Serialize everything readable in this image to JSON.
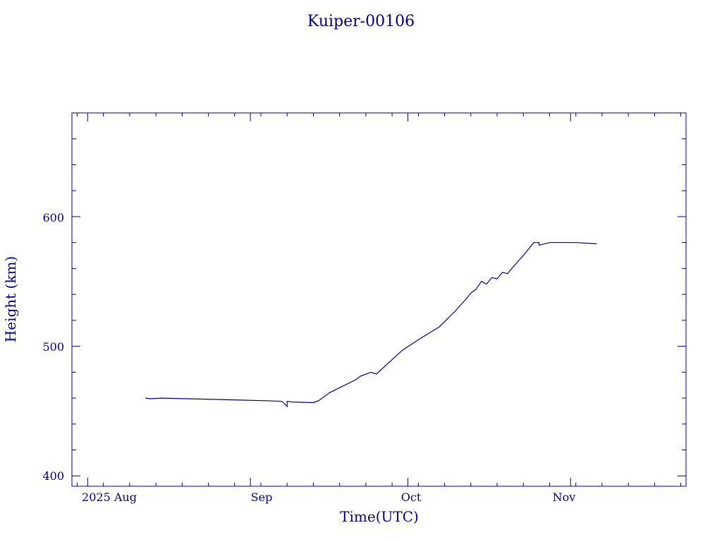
{
  "chart_data": {
    "type": "line",
    "title": "Kuiper-00106",
    "xlabel": "Time(UTC)",
    "ylabel": "Height (km)",
    "x_tick_labels": [
      "2025 Aug",
      "Sep",
      "Oct",
      "Nov"
    ],
    "y_tick_labels": [
      "400",
      "500",
      "600"
    ],
    "xlim": [
      "2025-07-29",
      "2025-11-23"
    ],
    "ylim": [
      392,
      680
    ],
    "grid": false,
    "color": "#00007f",
    "series": [
      {
        "x": [
          "2025-08-12",
          "2025-08-13",
          "2025-08-15",
          "2025-08-20",
          "2025-08-25",
          "2025-08-30",
          "2025-09-04",
          "2025-09-07",
          "2025-09-08",
          "2025-09-08",
          "2025-09-09",
          "2025-09-13",
          "2025-09-14",
          "2025-09-16",
          "2025-09-19",
          "2025-09-21",
          "2025-09-22",
          "2025-09-24",
          "2025-09-25",
          "2025-09-27",
          "2025-09-30",
          "2025-10-03",
          "2025-10-07",
          "2025-10-10",
          "2025-10-12",
          "2025-10-13",
          "2025-10-14",
          "2025-10-15",
          "2025-10-16",
          "2025-10-17",
          "2025-10-18",
          "2025-10-19",
          "2025-10-20",
          "2025-10-21",
          "2025-10-23",
          "2025-10-25",
          "2025-10-26",
          "2025-10-26",
          "2025-10-28",
          "2025-11-02",
          "2025-11-06"
        ],
        "y": [
          460,
          459.5,
          460,
          459.5,
          459,
          458.5,
          458,
          457.5,
          453.5,
          457.5,
          457,
          456.5,
          458,
          464,
          470,
          474,
          477,
          480,
          478.5,
          486,
          497,
          505,
          515,
          527,
          536,
          541,
          544,
          550,
          548,
          553,
          552,
          557,
          556,
          561,
          570,
          580,
          580,
          578,
          580,
          580,
          579
        ]
      }
    ]
  }
}
